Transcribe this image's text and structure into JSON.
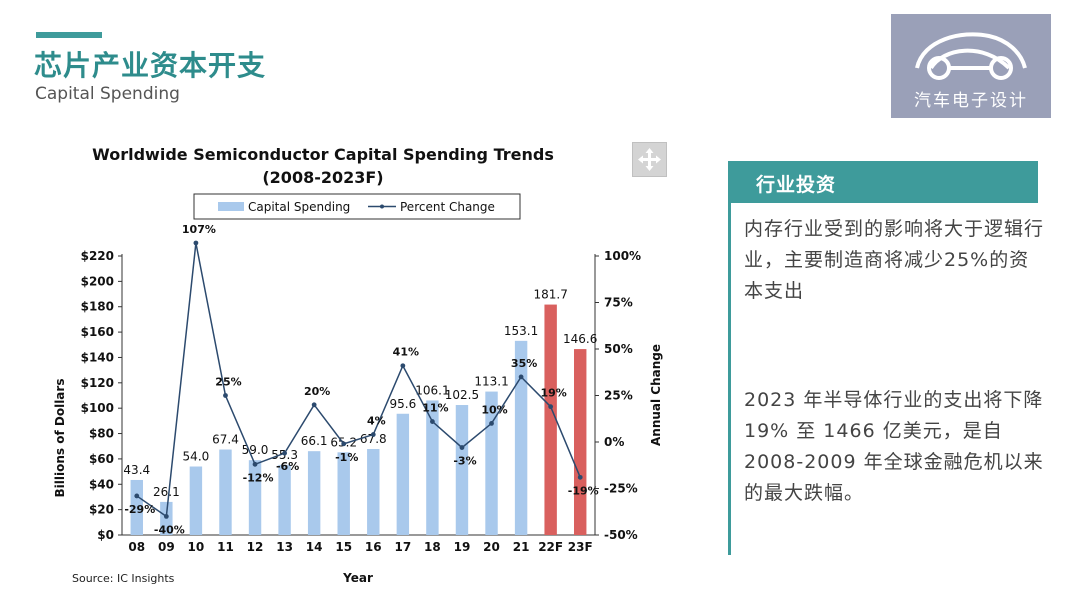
{
  "header": {
    "title": "芯片产业资本开支",
    "subtitle": "Capital Spending"
  },
  "logo": {
    "text": "汽车电子设计",
    "icon": "car-outline-icon"
  },
  "panel": {
    "title": "行业投资",
    "paragraph1": "内存行业受到的影响将大于逻辑行业，主要制造商将减少25%的资本支出",
    "paragraph2": "2023 年半导体行业的支出将下降 19% 至 1466 亿美元，是自 2008-2009 年全球金融危机以来的最大跌幅。"
  },
  "colors": {
    "accent": "#3e9b9b",
    "bar": "#a9c9ec",
    "bar_forecast": "#d9605e",
    "line": "#2c4a6e"
  },
  "chart_data": {
    "type": "bar",
    "title": "Worldwide Semiconductor Capital Spending Trends",
    "subtitle": "(2008-2023F)",
    "xlabel": "Year",
    "ylabel": "Billions of Dollars",
    "y2label": "Annual Change",
    "source": "Source: IC Insights",
    "categories": [
      "08",
      "09",
      "10",
      "11",
      "12",
      "13",
      "14",
      "15",
      "16",
      "17",
      "18",
      "19",
      "20",
      "21",
      "22F",
      "23F"
    ],
    "ylim": [
      0,
      220
    ],
    "y_ticks": [
      "$0",
      "$20",
      "$40",
      "$60",
      "$80",
      "$100",
      "$120",
      "$140",
      "$160",
      "$180",
      "$200",
      "$220"
    ],
    "y2lim": [
      -50,
      100
    ],
    "y2_ticks": [
      "-50%",
      "-25%",
      "0%",
      "25%",
      "50%",
      "75%",
      "100%"
    ],
    "legend": {
      "position": "top",
      "items": [
        "Capital Spending",
        "Percent Change"
      ]
    },
    "series": [
      {
        "name": "Capital Spending",
        "values": [
          43.4,
          26.1,
          54.0,
          67.4,
          59.0,
          55.3,
          66.1,
          65.2,
          67.8,
          95.6,
          106.1,
          102.5,
          113.1,
          153.1,
          181.7,
          146.6
        ],
        "labels": [
          "43.4",
          "26.1",
          "54.0",
          "67.4",
          "59.0",
          "55.3",
          "66.1",
          "65.2",
          "67.8",
          "95.6",
          "106.1",
          "102.5",
          "113.1",
          "153.1",
          "181.7",
          "146.6"
        ],
        "forecast": [
          false,
          false,
          false,
          false,
          false,
          false,
          false,
          false,
          false,
          false,
          false,
          false,
          false,
          false,
          true,
          true
        ]
      },
      {
        "name": "Percent Change",
        "axis": "right",
        "values": [
          -29,
          -40,
          107,
          25,
          -12,
          -6,
          20,
          -1,
          4,
          41,
          11,
          -3,
          10,
          35,
          19,
          -19
        ],
        "labels": [
          "-29%",
          "-40%",
          "107%",
          "25%",
          "-12%",
          "-6%",
          "20%",
          "-1%",
          "4%",
          "41%",
          "11%",
          "-3%",
          "10%",
          "35%",
          "19%",
          "-19%"
        ]
      }
    ]
  }
}
